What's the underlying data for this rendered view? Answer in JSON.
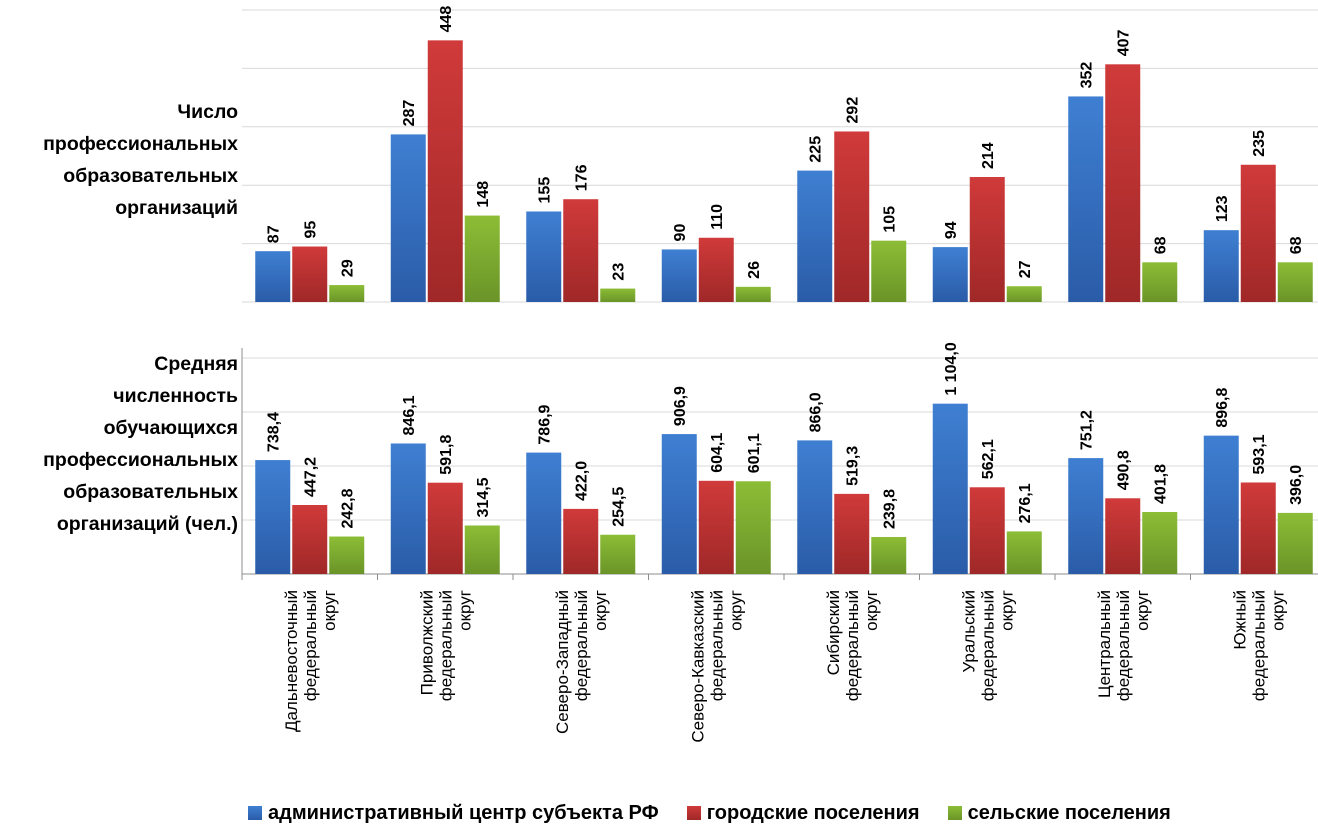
{
  "chart_data": [
    {
      "type": "bar",
      "title": "Число профессиональных образовательных организаций",
      "title_lines": [
        "Число",
        "профессиональных",
        "образовательных",
        "организаций"
      ],
      "categories": [
        "Дальневосточный федеральный округ",
        "Приволжский федеральный округ",
        "Северо-Западный федеральный округ",
        "Северо-Кавказский федеральный округ",
        "Сибирский федеральный округ",
        "Уральский федеральный округ",
        "Центральный федеральный округ",
        "Южный федеральный округ"
      ],
      "series": [
        {
          "name": "административный центр субъекта РФ",
          "values": [
            87,
            287,
            155,
            90,
            225,
            94,
            352,
            123
          ]
        },
        {
          "name": "городские поселения",
          "values": [
            95,
            448,
            176,
            110,
            292,
            214,
            407,
            235
          ]
        },
        {
          "name": "сельские поселения",
          "values": [
            29,
            148,
            23,
            26,
            105,
            27,
            68,
            68
          ]
        }
      ],
      "value_labels": [
        [
          "87",
          "287",
          "155",
          "90",
          "225",
          "94",
          "352",
          "123"
        ],
        [
          "95",
          "448",
          "176",
          "110",
          "292",
          "214",
          "407",
          "235"
        ],
        [
          "29",
          "148",
          "23",
          "26",
          "105",
          "27",
          "68",
          "68"
        ]
      ],
      "ylim": [
        0,
        500
      ],
      "grid": true
    },
    {
      "type": "bar",
      "title": "Средняя численность обучающихся профессиональных образовательных организаций (чел.)",
      "title_lines": [
        "Средняя",
        "численность",
        "обучающихся",
        "профессиональных",
        "образовательных",
        "организаций (чел.)"
      ],
      "categories": [
        "Дальневосточный федеральный округ",
        "Приволжский федеральный округ",
        "Северо-Западный федеральный округ",
        "Северо-Кавказский федеральный округ",
        "Сибирский федеральный округ",
        "Уральский федеральный округ",
        "Центральный федеральный округ",
        "Южный федеральный округ"
      ],
      "series": [
        {
          "name": "административный центр субъекта РФ",
          "values": [
            738.4,
            846.1,
            786.9,
            906.9,
            866.0,
            1104.0,
            751.2,
            896.8
          ]
        },
        {
          "name": "городские поселения",
          "values": [
            447.2,
            591.8,
            422.0,
            604.1,
            519.3,
            562.1,
            490.8,
            593.1
          ]
        },
        {
          "name": "сельские поселения",
          "values": [
            242.8,
            314.5,
            254.5,
            601.1,
            239.8,
            276.1,
            401.8,
            396.0
          ]
        }
      ],
      "value_labels": [
        [
          "738,4",
          "846,1",
          "786,9",
          "906,9",
          "866,0",
          "1 104,0",
          "751,2",
          "896,8"
        ],
        [
          "447,2",
          "591,8",
          "422,0",
          "604,1",
          "519,3",
          "562,1",
          "490,8",
          "593,1"
        ],
        [
          "242,8",
          "314,5",
          "254,5",
          "601,1",
          "239,8",
          "276,1",
          "401,8",
          "396,0"
        ]
      ],
      "ylim": [
        0,
        1400
      ],
      "grid": true
    }
  ],
  "axis": {
    "category_lines": [
      [
        "Дальневосточный",
        "федеральный",
        "округ"
      ],
      [
        "Приволжский",
        "федеральный",
        "округ"
      ],
      [
        "Северо-Западный",
        "федеральный",
        "округ"
      ],
      [
        "Северо-Кавказский",
        "федеральный",
        "округ"
      ],
      [
        "Сибирский",
        "федеральный",
        "округ"
      ],
      [
        "Уральский",
        "федеральный",
        "округ"
      ],
      [
        "Центральный",
        "федеральный",
        "округ"
      ],
      [
        "Южный",
        "федеральный",
        "округ"
      ]
    ]
  },
  "legend": {
    "placement": "bottom",
    "items": [
      {
        "label": "административный центр субъекта РФ",
        "color": "#3f7fd2"
      },
      {
        "label": "городские поселения",
        "color": "#d03a3a"
      },
      {
        "label": "сельские поселения",
        "color": "#8cbd36"
      }
    ]
  },
  "colors": {
    "series": [
      "#3f7fd2",
      "#d03a3a",
      "#8cbd36"
    ],
    "series_dark": [
      "#2a5ca8",
      "#a02828",
      "#6a9428"
    ],
    "gridline": "#d9d9d9",
    "axis": "#8c8c8c"
  }
}
